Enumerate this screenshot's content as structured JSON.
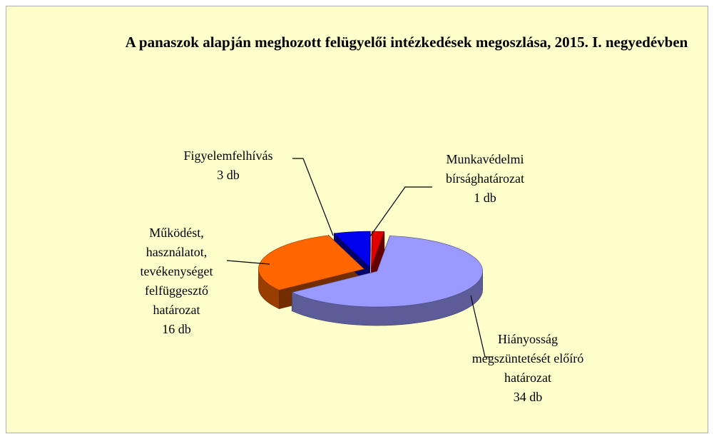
{
  "chart_data": {
    "type": "pie",
    "title": "A panaszok alapján meghozott felügyelői intézkedések megoszlása, 2015. I. negyedévben",
    "categories": [
      "Hiányosság megszüntetését előíró határozat",
      "Működést, használatot, tevékenységet felfüggesztő határozat",
      "Figyelemfelhívás",
      "Munkavédelmi bírsághatározat"
    ],
    "values": [
      34,
      16,
      3,
      1
    ],
    "value_labels": [
      "34 db",
      "16 db",
      "3 db",
      "1 db"
    ],
    "colors": [
      "#9999ff",
      "#ff6600",
      "#0000ee",
      "#e00000"
    ]
  }
}
